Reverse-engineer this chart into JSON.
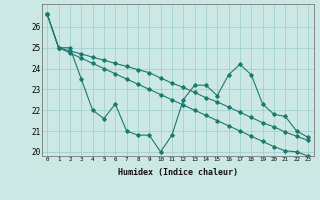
{
  "title": "",
  "xlabel": "Humidex (Indice chaleur)",
  "bg_color": "#cce8e4",
  "line_color": "#1a7a6e",
  "grid_color": "#99cccc",
  "x": [
    0,
    1,
    2,
    3,
    4,
    5,
    6,
    7,
    8,
    9,
    10,
    11,
    12,
    13,
    14,
    15,
    16,
    17,
    18,
    19,
    20,
    21,
    22,
    23
  ],
  "line1": [
    26.6,
    25.0,
    25.0,
    23.5,
    22.0,
    21.6,
    22.3,
    21.0,
    20.8,
    20.8,
    20.0,
    20.8,
    22.5,
    23.2,
    23.2,
    22.7,
    23.7,
    24.2,
    23.7,
    22.3,
    21.8,
    21.7,
    21.0,
    20.7
  ],
  "line2": [
    26.6,
    25.0,
    24.85,
    24.7,
    24.55,
    24.4,
    24.25,
    24.1,
    23.95,
    23.8,
    23.55,
    23.3,
    23.1,
    22.85,
    22.6,
    22.4,
    22.15,
    21.9,
    21.65,
    21.4,
    21.2,
    20.95,
    20.75,
    20.55
  ],
  "line3": [
    26.6,
    25.0,
    24.75,
    24.5,
    24.25,
    24.0,
    23.75,
    23.5,
    23.25,
    23.0,
    22.75,
    22.5,
    22.25,
    22.0,
    21.75,
    21.5,
    21.25,
    21.0,
    20.75,
    20.5,
    20.25,
    20.05,
    20.0,
    19.8
  ],
  "ylim": [
    20,
    27
  ],
  "yticks": [
    20,
    21,
    22,
    23,
    24,
    25,
    26
  ],
  "xticks": [
    0,
    1,
    2,
    3,
    4,
    5,
    6,
    7,
    8,
    9,
    10,
    11,
    12,
    13,
    14,
    15,
    16,
    17,
    18,
    19,
    20,
    21,
    22,
    23
  ]
}
